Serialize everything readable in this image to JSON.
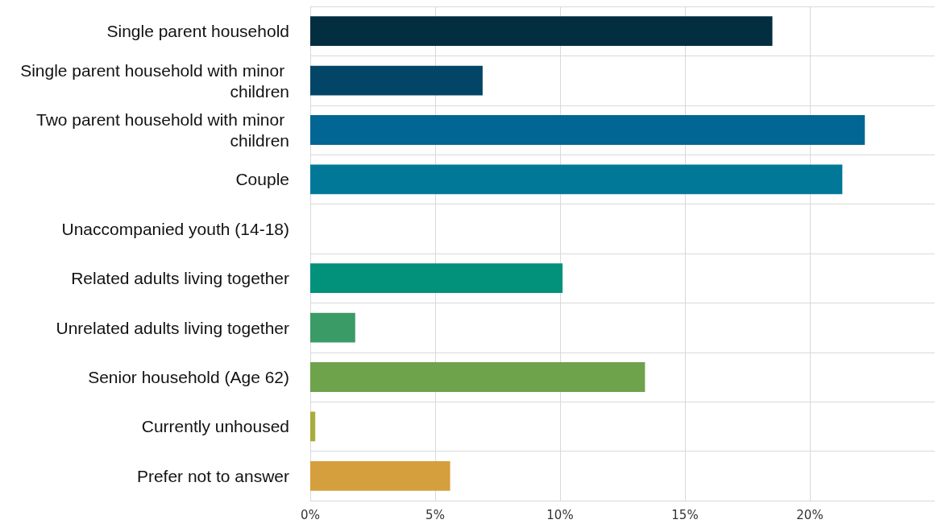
{
  "chart_data": {
    "type": "bar",
    "orientation": "horizontal",
    "categories": [
      "Single parent household",
      "Single parent household with minor children",
      "Two parent household with minor children",
      "Couple",
      "Unaccompanied youth (14-18)",
      "Related adults living together",
      "Unrelated adults living together",
      "Senior household (Age 62)",
      "Currently unhoused",
      "Prefer not to answer"
    ],
    "values": [
      18.5,
      6.9,
      22.2,
      21.3,
      0,
      10.1,
      1.8,
      13.4,
      0.2,
      5.6
    ],
    "colors": [
      "#022e40",
      "#034566",
      "#026694",
      "#027899",
      "#02917b",
      "#02917b",
      "#3a9b66",
      "#6ea24b",
      "#a8ac3c",
      "#d59f3d"
    ],
    "xlim": [
      0,
      25
    ],
    "xticks": [
      {
        "value": 0,
        "label": "0%"
      },
      {
        "value": 5,
        "label": "5%"
      },
      {
        "value": 10,
        "label": "10%"
      },
      {
        "value": 15,
        "label": "15%"
      },
      {
        "value": 20,
        "label": "20%"
      }
    ],
    "grid": true
  }
}
